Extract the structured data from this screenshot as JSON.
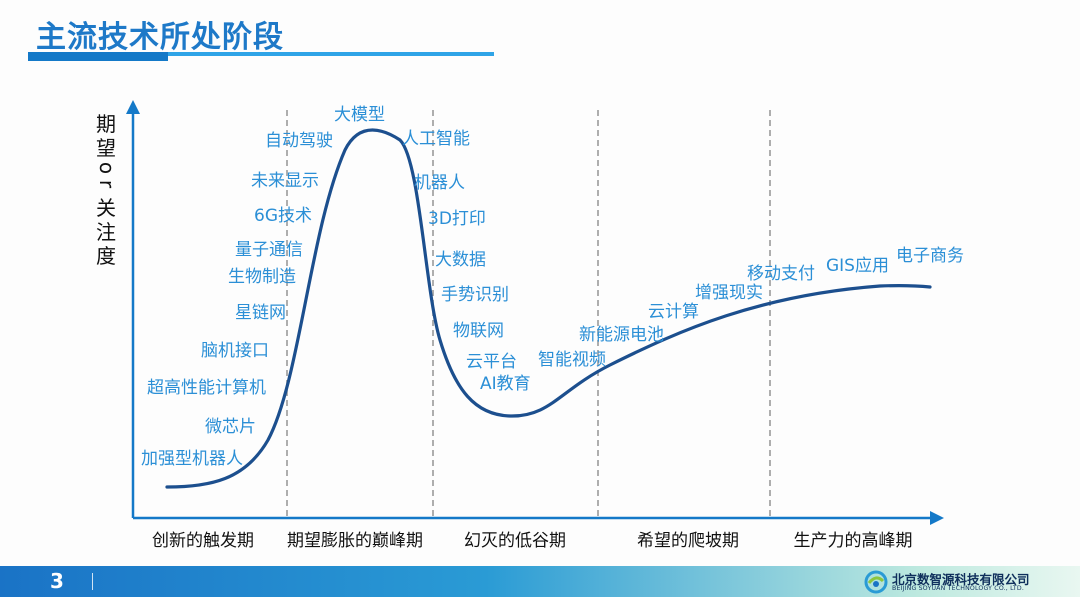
{
  "title": "主流技术所处阶段",
  "y_axis_label": [
    "期",
    "望",
    "o",
    "r",
    "关",
    "注",
    "度"
  ],
  "phases": [
    "创新的触发期",
    "期望膨胀的巅峰期",
    "幻灭的低谷期",
    "希望的爬坡期",
    "生产力的高峰期"
  ],
  "technologies": [
    "加强型机器人",
    "微芯片",
    "超高性能计算机",
    "脑机接口",
    "星链网",
    "生物制造",
    "量子通信",
    "6G技术",
    "未来显示",
    "自动驾驶",
    "大模型",
    "人工智能",
    "机器人",
    "3D打印",
    "大数据",
    "手势识别",
    "物联网",
    "云平台",
    "AI教育",
    "智能视频",
    "新能源电池",
    "云计算",
    "增强现实",
    "移动支付",
    "GIS应用",
    "电子商务"
  ],
  "footer": {
    "page_number": "3",
    "company_name": "北京数智源科技有限公司",
    "company_name_en": "BEIJING SOYUAN TECHNOLOGY CO., LTD."
  },
  "colors": {
    "title": "#1e79c8",
    "curve": "#1c4f8e",
    "label": "#2b8fd6",
    "axis": "#1479c8"
  }
}
